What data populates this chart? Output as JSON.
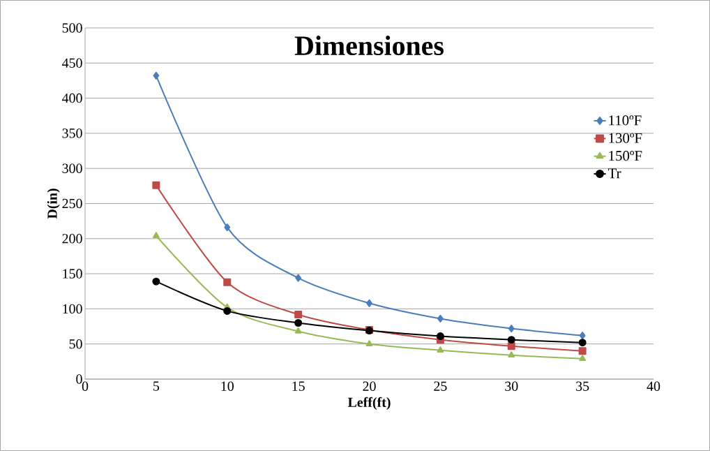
{
  "chart_data": {
    "type": "line",
    "title": "Dimensiones",
    "xlabel": "Leff(ft)",
    "ylabel": "D(in)",
    "x": [
      5,
      10,
      15,
      20,
      25,
      30,
      35
    ],
    "series": [
      {
        "name": "110ºF",
        "color": "#4a7ebb",
        "marker": "diamond",
        "values": [
          432,
          216,
          144,
          108,
          86,
          72,
          62
        ]
      },
      {
        "name": "130ºF",
        "color": "#be4b48",
        "marker": "square",
        "values": [
          276,
          138,
          92,
          70,
          56,
          47,
          40
        ]
      },
      {
        "name": "150ºF",
        "color": "#98b954",
        "marker": "triangle",
        "values": [
          204,
          102,
          68,
          50,
          41,
          34,
          29
        ]
      },
      {
        "name": "Tr",
        "color": "#000000",
        "marker": "circle",
        "values": [
          139,
          97,
          80,
          69,
          61,
          56,
          52
        ]
      }
    ],
    "xlim": [
      0,
      40
    ],
    "xticks": [
      0,
      5,
      10,
      15,
      20,
      25,
      30,
      35,
      40
    ],
    "ylim": [
      0,
      500
    ],
    "yticks": [
      0,
      50,
      100,
      150,
      200,
      250,
      300,
      350,
      400,
      450,
      500
    ],
    "grid": "y",
    "legend": "right",
    "line_style": "solid"
  }
}
